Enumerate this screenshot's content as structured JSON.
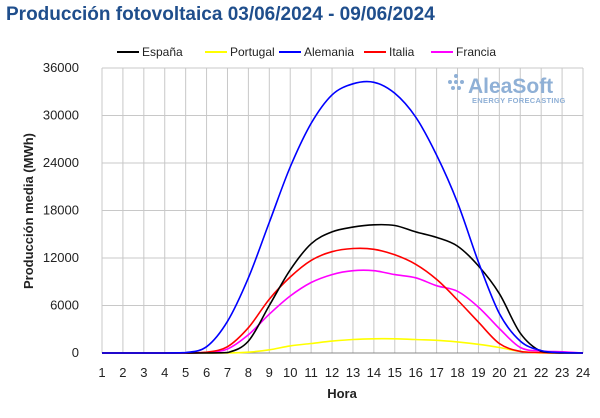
{
  "chart_data": {
    "type": "line",
    "title": "Producción fotovoltaica 03/06/2024 - 09/06/2024",
    "xlabel": "Hora",
    "ylabel": "Producción media (MWh)",
    "x": [
      1,
      2,
      3,
      4,
      5,
      6,
      7,
      8,
      9,
      10,
      11,
      12,
      13,
      14,
      15,
      16,
      17,
      18,
      19,
      20,
      21,
      22,
      23,
      24
    ],
    "xlim": [
      1,
      24
    ],
    "ylim": [
      0,
      36000
    ],
    "yticks": [
      0,
      6000,
      12000,
      18000,
      24000,
      30000,
      36000
    ],
    "grid": true,
    "legend_position": "top",
    "series": [
      {
        "name": "España",
        "color": "#000000",
        "values": [
          0,
          0,
          0,
          0,
          0,
          0,
          50,
          1500,
          6000,
          10500,
          13800,
          15300,
          15900,
          16200,
          16100,
          15300,
          14600,
          13500,
          11000,
          7500,
          2500,
          200,
          0,
          0
        ]
      },
      {
        "name": "Portugal",
        "color": "#ffff00",
        "values": [
          0,
          0,
          0,
          0,
          0,
          0,
          0,
          100,
          400,
          900,
          1200,
          1500,
          1700,
          1800,
          1800,
          1700,
          1600,
          1400,
          1100,
          700,
          200,
          0,
          0,
          0
        ]
      },
      {
        "name": "Alemania",
        "color": "#0000ff",
        "values": [
          0,
          0,
          0,
          0,
          50,
          800,
          4000,
          9500,
          16500,
          23500,
          29000,
          32600,
          34000,
          34200,
          32800,
          29800,
          25000,
          19000,
          11500,
          5000,
          1500,
          300,
          50,
          0
        ]
      },
      {
        "name": "Italia",
        "color": "#ff0000",
        "values": [
          0,
          0,
          0,
          0,
          0,
          100,
          800,
          3200,
          6800,
          9600,
          11700,
          12800,
          13200,
          13100,
          12400,
          11200,
          9300,
          6700,
          3900,
          1200,
          200,
          50,
          0,
          0
        ]
      },
      {
        "name": "Francia",
        "color": "#ff00ff",
        "values": [
          0,
          0,
          0,
          0,
          0,
          50,
          500,
          2300,
          4900,
          7200,
          8900,
          9900,
          10400,
          10400,
          9900,
          9500,
          8500,
          7800,
          5800,
          3100,
          700,
          250,
          150,
          0
        ]
      }
    ]
  },
  "logo": {
    "name": "AleaSoft",
    "tagline": "ENERGY FORECASTING"
  }
}
